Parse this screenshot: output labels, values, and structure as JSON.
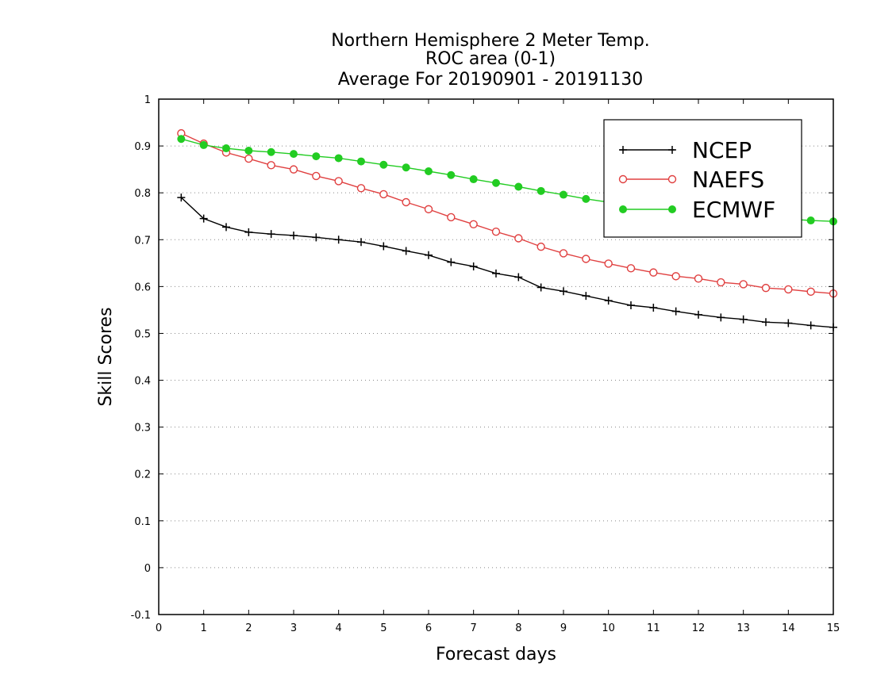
{
  "chart_data": {
    "type": "line",
    "title_lines": [
      "Northern Hemisphere 2 Meter Temp.",
      "ROC area (0-1)",
      "Average For 20190901 - 20191130"
    ],
    "xlabel": "Forecast days",
    "ylabel": "Skill Scores",
    "xlim": [
      0,
      15
    ],
    "ylim": [
      -0.1,
      1
    ],
    "x_ticks": [
      0,
      1,
      2,
      3,
      4,
      5,
      6,
      7,
      8,
      9,
      10,
      11,
      12,
      13,
      14,
      15
    ],
    "y_ticks": [
      -0.1,
      0,
      0.1,
      0.2,
      0.3,
      0.4,
      0.5,
      0.6,
      0.7,
      0.8,
      0.9,
      1
    ],
    "y_tick_labels": [
      "-0.1",
      "0",
      "0.1",
      "0.2",
      "0.3",
      "0.4",
      "0.5",
      "0.6",
      "0.7",
      "0.8",
      "0.9",
      "1"
    ],
    "grid": "horizontal dotted",
    "legend": "top-right",
    "x": [
      0.5,
      1,
      1.5,
      2,
      2.5,
      3,
      3.5,
      4,
      4.5,
      5,
      5.5,
      6,
      6.5,
      7,
      7.5,
      8,
      8.5,
      9,
      9.5,
      10,
      10.5,
      11,
      11.5,
      12,
      12.5,
      13,
      13.5,
      14,
      14.5,
      15
    ],
    "series": [
      {
        "name": "NCEP",
        "color": "#000000",
        "marker": "plus",
        "values": [
          0.79,
          0.745,
          0.727,
          0.716,
          0.712,
          0.709,
          0.705,
          0.7,
          0.695,
          0.686,
          0.676,
          0.667,
          0.652,
          0.643,
          0.628,
          0.62,
          0.598,
          0.59,
          0.58,
          0.57,
          0.56,
          0.555,
          0.547,
          0.54,
          0.534,
          0.53,
          0.524,
          0.522,
          0.517,
          0.513
        ]
      },
      {
        "name": "NAEFS",
        "color": "#e04040",
        "marker": "open-circle",
        "values": [
          0.927,
          0.905,
          0.886,
          0.873,
          0.859,
          0.85,
          0.836,
          0.825,
          0.81,
          0.797,
          0.78,
          0.765,
          0.748,
          0.733,
          0.717,
          0.703,
          0.685,
          0.671,
          0.659,
          0.649,
          0.639,
          0.63,
          0.622,
          0.617,
          0.609,
          0.605,
          0.597,
          0.594,
          0.589,
          0.585
        ]
      },
      {
        "name": "ECMWF",
        "color": "#22cc22",
        "marker": "filled-circle",
        "values": [
          0.915,
          0.902,
          0.895,
          0.89,
          0.887,
          0.883,
          0.878,
          0.874,
          0.867,
          0.86,
          0.854,
          0.846,
          0.838,
          0.829,
          0.821,
          0.813,
          0.804,
          0.796,
          0.787,
          0.78,
          0.774,
          0.768,
          0.762,
          0.757,
          0.752,
          0.748,
          0.746,
          0.744,
          0.741,
          0.739
        ]
      }
    ]
  }
}
